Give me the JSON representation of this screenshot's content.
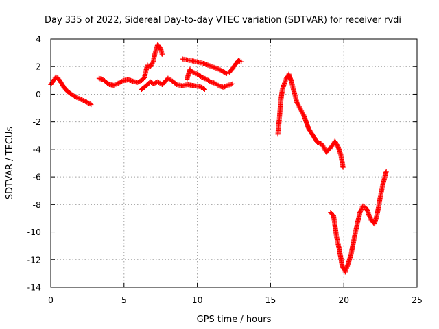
{
  "chart_data": {
    "type": "scatter",
    "title": "Day 335 of 2022, Sidereal Day-to-day VTEC variation (SDTVAR) for receiver rvdi",
    "xlabel": "GPS time / hours",
    "ylabel": "SDTVAR / TECUs",
    "xlim": [
      0,
      25
    ],
    "ylim": [
      -14,
      4
    ],
    "x_ticks": [
      "0",
      "5",
      "10",
      "15",
      "20",
      "25"
    ],
    "y_ticks": [
      "4",
      "2",
      "0",
      "-2",
      "-4",
      "-6",
      "-8",
      "-10",
      "-12",
      "-14"
    ],
    "grid": true,
    "marker": "plus",
    "color": "#ff0000",
    "series": [
      {
        "x": [
          0.0,
          0.2,
          0.35,
          0.5,
          0.7,
          0.9,
          1.1,
          1.4,
          1.7,
          2.0,
          2.3,
          2.6,
          2.75
        ],
        "y": [
          0.7,
          1.0,
          1.25,
          1.15,
          0.85,
          0.5,
          0.25,
          0.0,
          -0.2,
          -0.35,
          -0.5,
          -0.65,
          -0.75
        ]
      },
      {
        "x": [
          3.3,
          3.6,
          3.8,
          4.0,
          4.3,
          4.6,
          5.0,
          5.3,
          5.6,
          5.9,
          6.2,
          6.4
        ],
        "y": [
          1.15,
          1.05,
          0.85,
          0.7,
          0.65,
          0.8,
          1.0,
          1.05,
          0.95,
          0.85,
          1.0,
          1.2
        ]
      },
      {
        "x": [
          6.4,
          6.5,
          6.6,
          6.8,
          7.0,
          7.1,
          7.3,
          7.5,
          7.6
        ],
        "y": [
          1.25,
          1.7,
          2.1,
          2.0,
          2.4,
          2.9,
          3.6,
          3.3,
          2.9
        ]
      },
      {
        "x": [
          6.2,
          6.5,
          6.8,
          7.0,
          7.3,
          7.6,
          8.0,
          8.3,
          8.6,
          9.0,
          9.3,
          9.6,
          9.9,
          10.2,
          10.5
        ],
        "y": [
          0.35,
          0.6,
          0.9,
          0.75,
          0.9,
          0.7,
          1.15,
          0.95,
          0.7,
          0.6,
          0.7,
          0.65,
          0.6,
          0.55,
          0.35
        ]
      },
      {
        "x": [
          9.3,
          9.5,
          9.7,
          10.0,
          10.3,
          10.6,
          10.9,
          11.2,
          11.5,
          11.8,
          12.1,
          12.4
        ],
        "y": [
          1.1,
          1.8,
          1.6,
          1.45,
          1.25,
          1.1,
          0.9,
          0.8,
          0.6,
          0.5,
          0.65,
          0.75
        ]
      },
      {
        "x": [
          9.0,
          9.5,
          10.0,
          10.5,
          11.0,
          11.5,
          12.0,
          12.2,
          12.4,
          12.6,
          12.8,
          13.0
        ],
        "y": [
          2.55,
          2.45,
          2.35,
          2.2,
          2.0,
          1.8,
          1.5,
          1.6,
          1.85,
          2.15,
          2.45,
          2.35
        ]
      },
      {
        "x": [
          15.5,
          15.6,
          15.7,
          15.8,
          15.95,
          16.1,
          16.25,
          16.4,
          16.6,
          16.8,
          17.0,
          17.3,
          17.6,
          17.9,
          18.2,
          18.5,
          18.8,
          19.1,
          19.4,
          19.6,
          19.8,
          19.95
        ],
        "y": [
          -2.9,
          -1.8,
          -0.5,
          0.3,
          0.8,
          1.2,
          1.45,
          1.0,
          0.2,
          -0.6,
          -1.0,
          -1.6,
          -2.5,
          -3.0,
          -3.5,
          -3.6,
          -4.2,
          -3.9,
          -3.4,
          -3.8,
          -4.4,
          -5.3
        ]
      },
      {
        "x": [
          19.1,
          19.3,
          19.5,
          19.7,
          19.9,
          20.1,
          20.3,
          20.5,
          20.7,
          20.9,
          21.1,
          21.3,
          21.5,
          21.7,
          21.9,
          22.1,
          22.3,
          22.5,
          22.7,
          22.9
        ],
        "y": [
          -8.6,
          -8.8,
          -10.3,
          -11.3,
          -12.5,
          -12.9,
          -12.3,
          -11.6,
          -10.5,
          -9.5,
          -8.6,
          -8.1,
          -8.2,
          -8.7,
          -9.2,
          -9.4,
          -8.6,
          -7.4,
          -6.4,
          -5.6
        ]
      }
    ]
  }
}
